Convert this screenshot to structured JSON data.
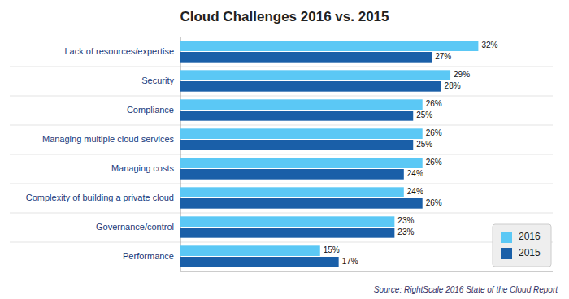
{
  "chart_data": {
    "type": "bar",
    "orientation": "horizontal",
    "title": "Cloud Challenges 2016 vs. 2015",
    "categories": [
      "Lack of resources/expertise",
      "Security",
      "Compliance",
      "Managing multiple cloud services",
      "Managing costs",
      "Complexity of building a private cloud",
      "Governance/control",
      "Performance"
    ],
    "series": [
      {
        "name": "2016",
        "color": "#5bc8f5",
        "values": [
          32,
          29,
          26,
          26,
          26,
          24,
          23,
          15
        ],
        "value_labels": [
          "32%",
          "29%",
          "26%",
          "26%",
          "26%",
          "24%",
          "23%",
          "15%"
        ]
      },
      {
        "name": "2015",
        "color": "#1a5fa8",
        "values": [
          27,
          28,
          25,
          25,
          24,
          26,
          23,
          17
        ],
        "value_labels": [
          "27%",
          "28%",
          "25%",
          "25%",
          "24%",
          "26%",
          "23%",
          "17%"
        ]
      }
    ],
    "xlim": [
      0,
      40
    ],
    "tick_labels": "y",
    "data_labels": true,
    "legend": "lower-right",
    "annotations": [
      "Source: RightScale 2016 State of the Cloud Report"
    ]
  }
}
